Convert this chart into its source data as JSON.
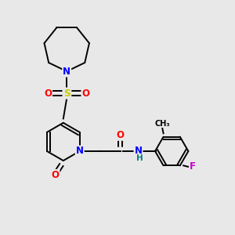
{
  "bg_color": "#e8e8e8",
  "atom_colors": {
    "C": "#000000",
    "N": "#0000ff",
    "O": "#ff0000",
    "S": "#cccc00",
    "F": "#cc00cc",
    "H": "#008080"
  },
  "bond_color": "#000000",
  "bond_lw": 1.4,
  "font_size_atom": 8.5,
  "fig_size": [
    3.0,
    3.0
  ],
  "xlim": [
    0,
    10
  ],
  "ylim": [
    0,
    10
  ]
}
